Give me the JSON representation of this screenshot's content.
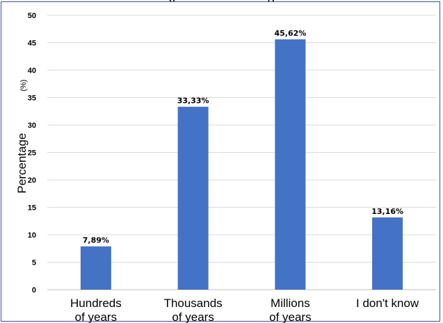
{
  "top_text": "...g ... ... ... ... ... ... p...",
  "chart_data": {
    "type": "bar",
    "categories": [
      [
        "Hundreds",
        "of years"
      ],
      [
        "Thousands",
        "of years"
      ],
      [
        "Millions",
        "of years"
      ],
      [
        "I don't know",
        ""
      ]
    ],
    "values": [
      7.89,
      33.33,
      45.62,
      13.16
    ],
    "data_labels": [
      "7,89%",
      "33,33%",
      "45,62%",
      "13,16%"
    ],
    "ylabel": "Percentage",
    "ylabel_unit": "(%)",
    "ylim": [
      0,
      50
    ],
    "yticks": [
      0,
      5,
      10,
      15,
      20,
      25,
      30,
      35,
      40,
      45,
      50
    ],
    "grid": true,
    "bar_color": "#4472c4",
    "grid_color": "#d9d9d9",
    "frame_color": "#2f5597"
  }
}
